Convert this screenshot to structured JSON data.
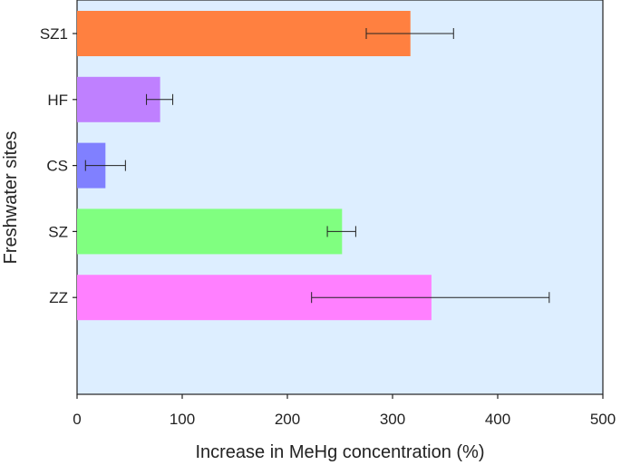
{
  "chart_data": {
    "type": "bar",
    "orientation": "horizontal",
    "title": "",
    "xlabel": "Increase in MeHg concentration (%)",
    "ylabel": "Freshwater sites",
    "xlim": [
      0,
      500
    ],
    "xticks": [
      0,
      100,
      200,
      300,
      400,
      500
    ],
    "grid": false,
    "background": "#ddeeff",
    "categories": [
      "SZ1",
      "HF",
      "CS",
      "SZ",
      "ZZ"
    ],
    "values": [
      317,
      79,
      27,
      252,
      337
    ],
    "error_low": [
      275,
      66,
      8,
      238,
      223
    ],
    "error_high": [
      358,
      91,
      46,
      265,
      449
    ],
    "colors": [
      "#ff8040",
      "#bf80ff",
      "#8080ff",
      "#80ff80",
      "#ff80ff"
    ]
  }
}
